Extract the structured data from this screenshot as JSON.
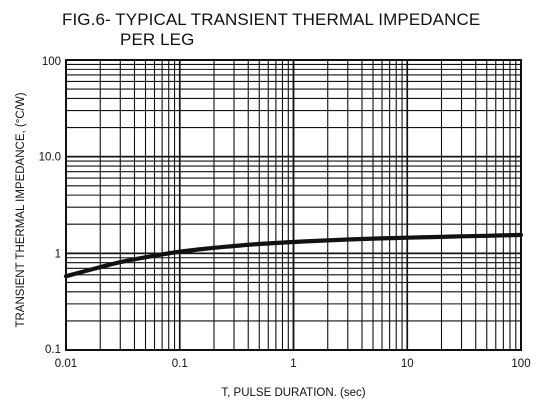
{
  "title_line1": "FIG.6- TYPICAL TRANSIENT THERMAL IMPEDANCE",
  "title_line2": "PER LEG",
  "chart_data": {
    "type": "line",
    "title": "FIG.6- TYPICAL TRANSIENT THERMAL IMPEDANCE PER LEG",
    "xlabel": "T, PULSE DURATION. (sec)",
    "ylabel": "TRANSIENT THERMAL IMPEDANCE, (°C/W)",
    "x_scale": "log",
    "y_scale": "log",
    "xlim": [
      0.01,
      100
    ],
    "ylim": [
      0.1,
      100
    ],
    "x_ticks": [
      "0.01",
      "0.1",
      "1",
      "10",
      "100"
    ],
    "y_ticks": [
      "0.1",
      "1",
      "10.0",
      "100"
    ],
    "grid": true,
    "series": [
      {
        "x": [
          0.01,
          0.02,
          0.03,
          0.05,
          0.1,
          0.2,
          0.3,
          0.5,
          1,
          2,
          3,
          5,
          10,
          20,
          30,
          50,
          100
        ],
        "values": [
          0.58,
          0.72,
          0.81,
          0.91,
          1.04,
          1.14,
          1.19,
          1.25,
          1.31,
          1.36,
          1.39,
          1.42,
          1.45,
          1.48,
          1.5,
          1.52,
          1.55
        ]
      }
    ],
    "line_color": "#111111"
  }
}
